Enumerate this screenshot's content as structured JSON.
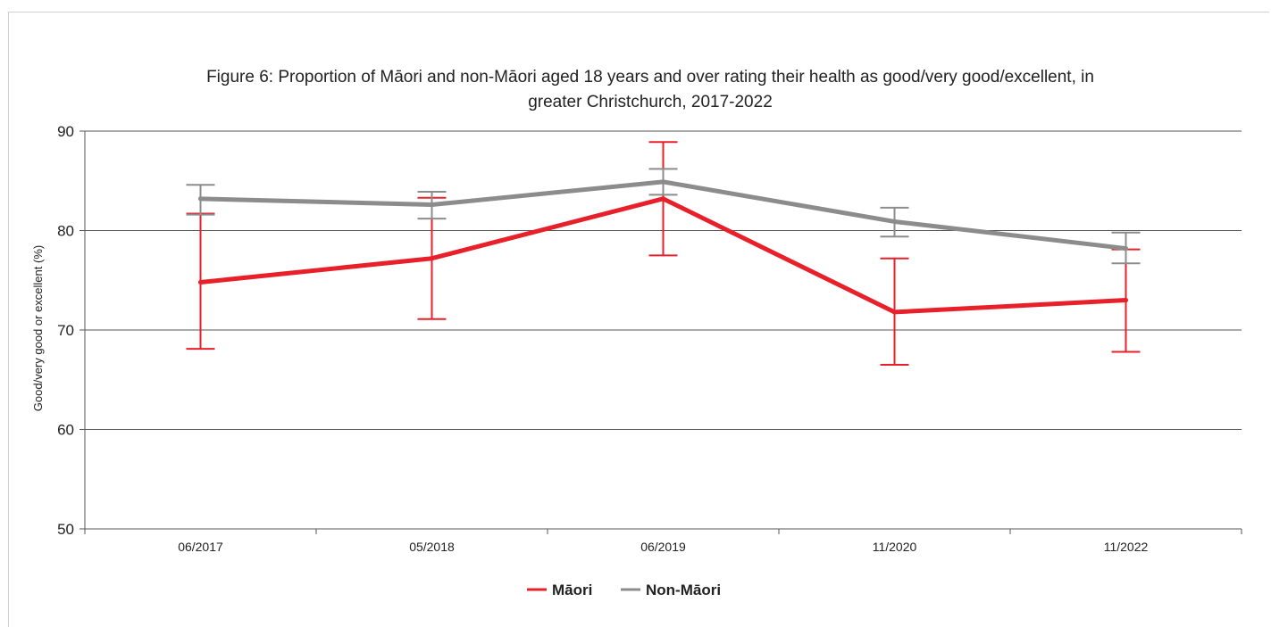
{
  "chart_data": {
    "type": "line",
    "title_lines": [
      "Figure 6: Proportion of Māori and non-Māori aged 18 years and over rating their health as good/very good/excellent, in",
      "greater Christchurch, 2017-2022"
    ],
    "xlabel": "",
    "ylabel": "Good/very good or excellent (%)",
    "categories": [
      "06/2017",
      "05/2018",
      "06/2019",
      "11/2020",
      "11/2022"
    ],
    "ylim": [
      50,
      90
    ],
    "yticks": [
      "50",
      "60",
      "70",
      "80",
      "90"
    ],
    "grid": "horizontal",
    "legend_position": "bottom",
    "error_bars": true,
    "series": [
      {
        "name": "Māori",
        "color": "#e8202a",
        "values": [
          74.8,
          77.2,
          83.2,
          71.8,
          73.0
        ],
        "lower": [
          68.1,
          71.1,
          77.5,
          66.5,
          67.8
        ],
        "upper": [
          81.7,
          83.3,
          88.9,
          77.2,
          78.1
        ]
      },
      {
        "name": "Non-Māori",
        "color": "#8c8c8c",
        "values": [
          83.2,
          82.6,
          84.9,
          80.9,
          78.2
        ],
        "lower": [
          81.6,
          81.2,
          83.6,
          79.4,
          76.7
        ],
        "upper": [
          84.6,
          83.9,
          86.2,
          82.3,
          79.8
        ]
      }
    ]
  }
}
